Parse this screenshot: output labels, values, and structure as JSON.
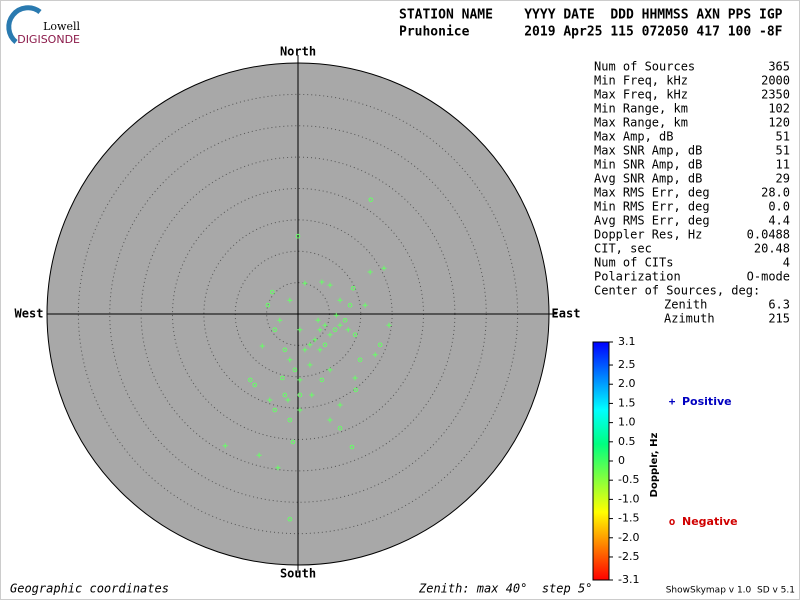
{
  "header": {
    "logo_top": "Lowell",
    "logo_bottom": "DIGISONDE",
    "columns": "STATION NAME    YYYY DATE  DDD HHMMSS AXN PPS IGP",
    "values": "Pruhonice       2019 Apr25 115 072050 417 100 -8F"
  },
  "chart_data": {
    "type": "skymap",
    "directions": {
      "north": "North",
      "south": "South",
      "east": "East",
      "west": "West"
    },
    "rlim": [
      0,
      40
    ],
    "rticks": [
      5,
      10,
      15,
      20,
      25,
      30,
      35,
      40
    ],
    "plot_color": "#a8a8a8",
    "point_color": "#66ff66",
    "series": [
      {
        "name": "Positive",
        "marker": "+",
        "color": "#0000c0",
        "x": [
          13.7,
          11.5,
          3.8,
          1.1,
          5.1,
          -1.3,
          6.7,
          10.7,
          14.5,
          12.3,
          9.1,
          6.7,
          5.1,
          0.3,
          -4.5,
          -5.7,
          -2.9,
          -1.3,
          0.3,
          1.9,
          3.5,
          5.1,
          6.7,
          3.5,
          2.7,
          1.1,
          0.3,
          -11.6,
          -6.2,
          -3.2,
          3.2,
          6.1,
          8.0,
          5.1,
          2.2,
          -1.6,
          4.3,
          1.9
        ],
        "values": [
          7.3,
          6.7,
          5.1,
          4.9,
          4.6,
          2.2,
          2.2,
          1.4,
          -1.8,
          -6.5,
          -10.2,
          -14.5,
          -16.9,
          -15.3,
          -13.7,
          -5.1,
          -1.0,
          -7.3,
          -10.5,
          -8.1,
          -5.7,
          -3.3,
          -1.8,
          -2.5,
          -4.1,
          -5.7,
          -2.5,
          -21.0,
          -22.5,
          -24.5,
          -1.0,
          -0.2,
          -2.5,
          -8.9,
          -12.9,
          -13.7,
          -1.8,
          -4.9
        ]
      },
      {
        "name": "Negative",
        "marker": "o",
        "color": "#d00000",
        "x": [
          11.6,
          0.0,
          8.8,
          -4.1,
          -4.8,
          8.3,
          13.1,
          9.9,
          9.2,
          6.7,
          8.6,
          -1.3,
          -3.7,
          -6.9,
          -7.6,
          -3.7,
          -2.1,
          -0.5,
          4.3,
          7.5,
          -0.8,
          -1.3,
          -2.5,
          9.1,
          3.8,
          -2.1,
          0.3,
          5.9
        ],
        "values": [
          18.2,
          12.4,
          4.1,
          3.5,
          1.4,
          1.4,
          -4.9,
          -7.3,
          -12.1,
          -18.2,
          -21.2,
          -16.9,
          -15.3,
          -11.3,
          -10.5,
          -2.5,
          -5.7,
          -8.9,
          -4.9,
          -1.0,
          -20.4,
          -32.7,
          -10.2,
          -3.3,
          -10.5,
          -12.9,
          -12.9,
          -2.5
        ]
      }
    ],
    "colorbar": {
      "label": "Doppler, Hz",
      "lim": [
        -3.1,
        3.1
      ],
      "colors": [
        "#ff0000",
        "#ff8000",
        "#ffff00",
        "#80ff40",
        "#00ff80",
        "#00ffff",
        "#0080ff",
        "#0000ff"
      ],
      "ticks": [
        3.1,
        2.5,
        {
          "value": 2,
          "label": "2.0"
        },
        1.5,
        {
          "value": 1,
          "label": "1.0"
        },
        0.5,
        0,
        -0.5,
        {
          "value": -1,
          "label": "-1.0"
        },
        -1.5,
        {
          "value": -2,
          "label": "-2.0"
        },
        -2.5,
        -3.1
      ]
    }
  },
  "stats": {
    "rows": [
      [
        "Num of Sources",
        "365"
      ],
      [
        "Min Freq, kHz",
        "2000"
      ],
      [
        "Max Freq, kHz",
        "2350"
      ],
      [
        "Min Range, km",
        "102"
      ],
      [
        "Max Range, km",
        "120"
      ],
      [
        "Max Amp, dB",
        "51"
      ],
      [
        "Max SNR Amp, dB",
        "51"
      ],
      [
        "Min SNR Amp, dB",
        "11"
      ],
      [
        "Avg SNR Amp, dB",
        "29"
      ],
      [
        "Max RMS Err, deg",
        "28.0"
      ],
      [
        "Min RMS Err, deg",
        "0.0"
      ],
      [
        "Avg RMS Err, deg",
        "4.4"
      ],
      [
        "Doppler Res, Hz",
        "0.0488"
      ],
      [
        "CIT, sec",
        "20.48"
      ],
      [
        "Num of CITs",
        "4"
      ],
      [
        "Polarization",
        "O-mode"
      ]
    ],
    "center_title": "Center of Sources, deg:",
    "center_rows": [
      [
        "Zenith",
        "6.3"
      ],
      [
        "Azimuth",
        "215"
      ]
    ]
  },
  "footer": {
    "coords": "Geographic coordinates",
    "zenith": "Zenith: max 40°  step 5°",
    "version": "ShowSkymap v 1.0  SD v 5.1"
  }
}
